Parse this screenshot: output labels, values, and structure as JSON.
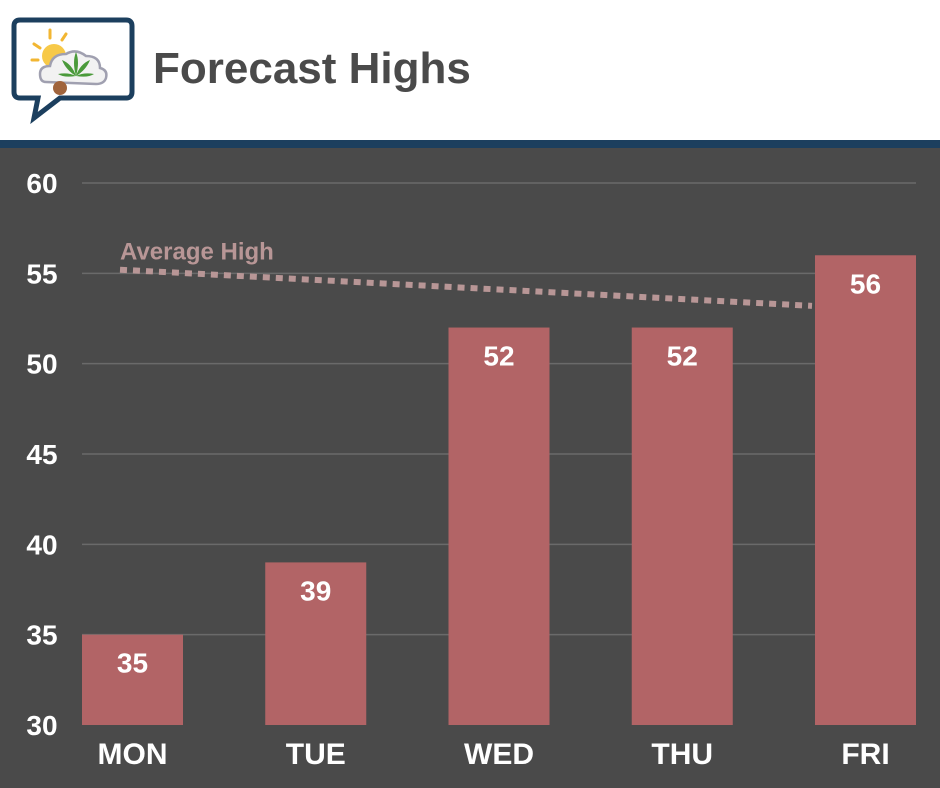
{
  "header": {
    "title": "Forecast Highs",
    "logo_icon": "weather-cannabis-logo-icon"
  },
  "colors": {
    "background": "#4a4a4a",
    "bar": "#b26466",
    "average_line": "#b89696",
    "header_rule": "#1c3f5e",
    "gridline": "#6a6a6a"
  },
  "chart_data": {
    "type": "bar",
    "title": "Forecast Highs",
    "categories": [
      "MON",
      "TUE",
      "WED",
      "THU",
      "FRI"
    ],
    "values": [
      35,
      39,
      52,
      52,
      56
    ],
    "ylim": [
      30,
      60
    ],
    "yticks": [
      30,
      35,
      40,
      45,
      50,
      55,
      60
    ],
    "grid": true,
    "data_labels": true,
    "reference_line": {
      "label": "Average High",
      "style": "dotted",
      "start_value": 55.2,
      "end_value": 53.2
    }
  }
}
